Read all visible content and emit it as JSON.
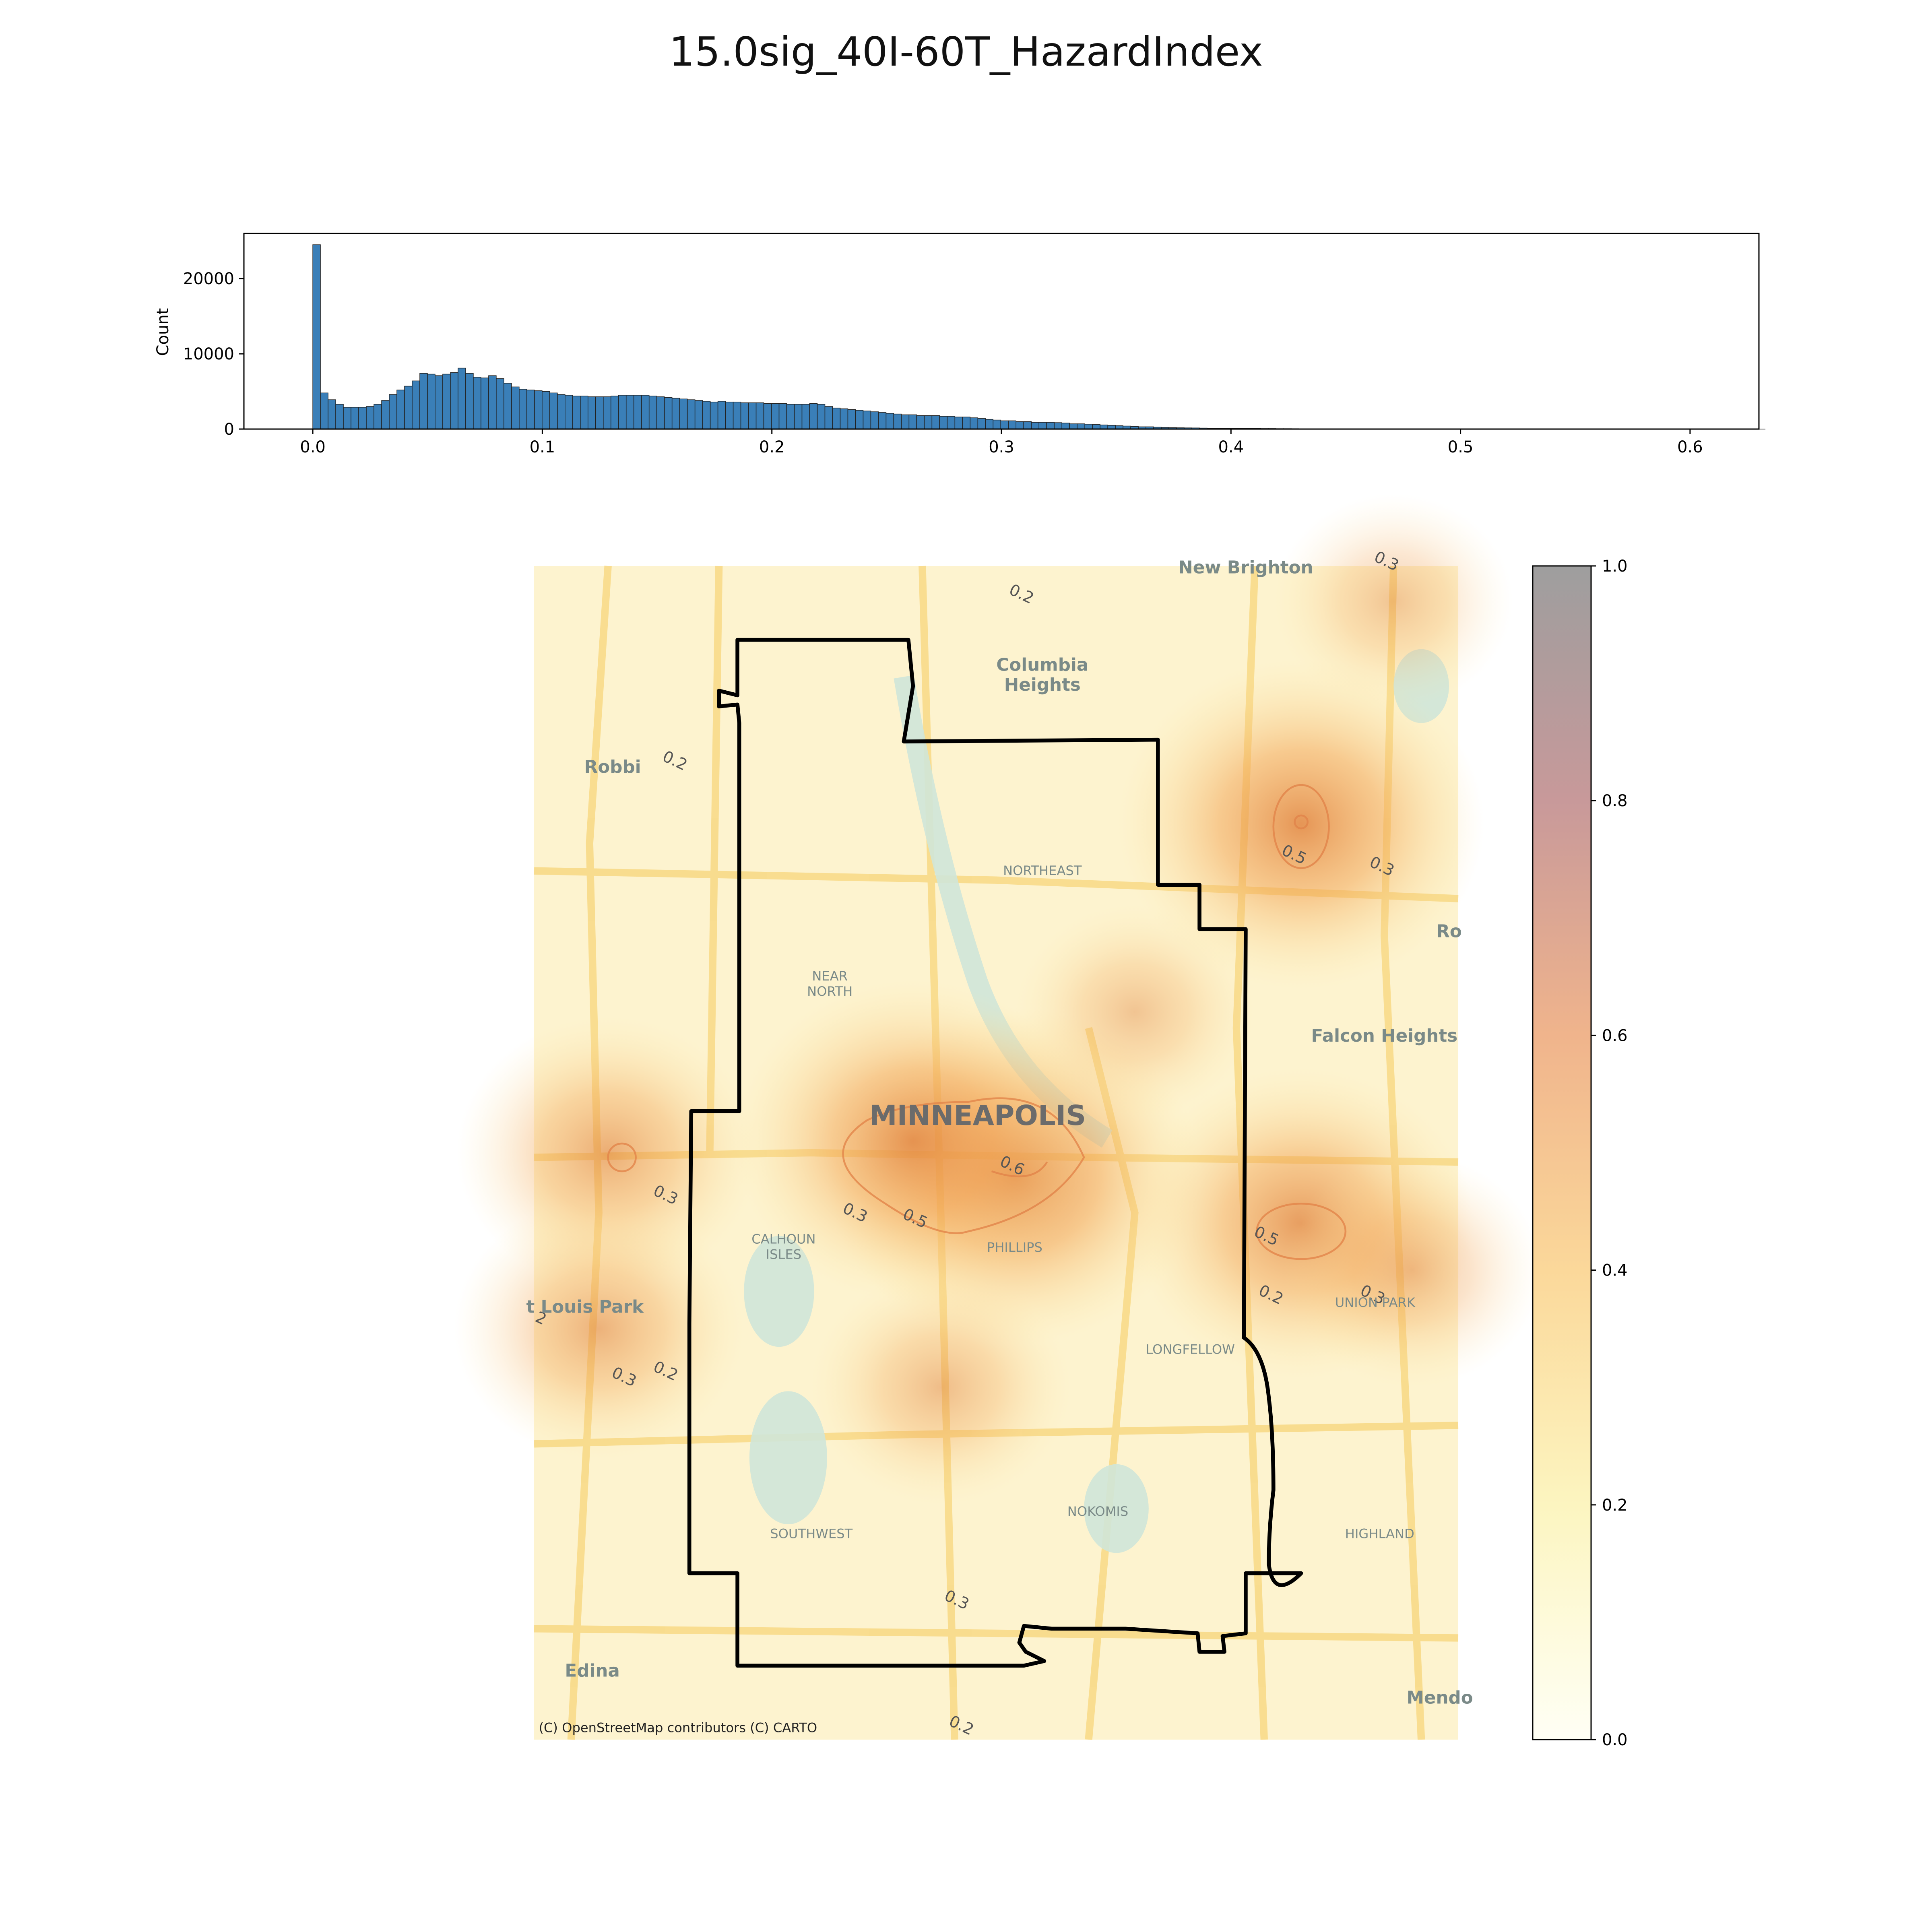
{
  "page": {
    "title": "15.0sig_40I-60T_HazardIndex"
  },
  "chart_data": [
    {
      "type": "bar",
      "kind": "histogram",
      "ylabel": "Count",
      "xlim": [
        -0.03,
        0.63
      ],
      "ylim": [
        0,
        26000
      ],
      "xticks": [
        "0.0",
        "0.1",
        "0.2",
        "0.3",
        "0.4",
        "0.5",
        "0.6"
      ],
      "yticks": [
        "0",
        "10000",
        "20000"
      ],
      "color": "#3a7fb8",
      "bin_width": 0.00333,
      "bin_start": 0.0,
      "values": [
        24500,
        4800,
        3900,
        3300,
        2900,
        2900,
        2900,
        3000,
        3300,
        3800,
        4600,
        5200,
        5700,
        6400,
        7400,
        7300,
        7100,
        7300,
        7500,
        8100,
        7400,
        6900,
        6800,
        7100,
        6700,
        6100,
        5600,
        5300,
        5200,
        5100,
        5000,
        4800,
        4600,
        4500,
        4400,
        4400,
        4300,
        4300,
        4300,
        4400,
        4500,
        4500,
        4500,
        4500,
        4400,
        4300,
        4200,
        4100,
        4000,
        3900,
        3800,
        3700,
        3600,
        3700,
        3600,
        3600,
        3500,
        3500,
        3500,
        3400,
        3400,
        3400,
        3300,
        3300,
        3300,
        3400,
        3300,
        3000,
        2800,
        2700,
        2600,
        2500,
        2400,
        2300,
        2200,
        2100,
        2000,
        1900,
        1900,
        1800,
        1800,
        1800,
        1700,
        1700,
        1600,
        1600,
        1500,
        1400,
        1300,
        1200,
        1100,
        1100,
        1000,
        1000,
        900,
        900,
        900,
        850,
        800,
        700,
        700,
        650,
        600,
        550,
        500,
        450,
        400,
        350,
        300,
        300,
        250,
        220,
        200,
        180,
        160,
        150,
        130,
        120,
        110,
        100,
        90,
        80,
        80,
        70,
        60,
        60,
        50,
        50,
        45,
        40,
        40,
        35,
        30,
        30,
        25,
        25,
        20,
        20,
        20,
        15,
        15,
        12,
        10,
        10,
        8,
        8,
        6,
        5,
        5,
        4,
        3,
        3,
        2,
        2,
        2,
        1,
        1,
        1,
        1,
        1,
        1,
        1,
        1,
        1,
        1,
        1,
        1,
        1,
        1,
        1,
        1,
        1,
        1,
        1,
        1,
        1,
        1,
        1,
        1,
        1,
        1,
        1,
        1,
        1,
        1,
        1,
        1,
        1,
        1,
        1
      ]
    },
    {
      "type": "heatmap",
      "kind": "map",
      "colorbar": {
        "min": 0.0,
        "max": 1.0,
        "ticks": [
          "0.0",
          "0.2",
          "0.4",
          "0.6",
          "0.8",
          "1.0"
        ]
      },
      "hotspots": [
        {
          "cx": 0.52,
          "cy": 0.52,
          "value": 0.62
        },
        {
          "cx": 0.41,
          "cy": 0.49,
          "value": 0.58
        },
        {
          "cx": 0.83,
          "cy": 0.22,
          "value": 0.6
        },
        {
          "cx": 0.83,
          "cy": 0.56,
          "value": 0.55
        },
        {
          "cx": 0.08,
          "cy": 0.5,
          "value": 0.45
        },
        {
          "cx": 0.07,
          "cy": 0.65,
          "value": 0.42
        },
        {
          "cx": 0.44,
          "cy": 0.7,
          "value": 0.35
        },
        {
          "cx": 0.65,
          "cy": 0.38,
          "value": 0.3
        },
        {
          "cx": 0.95,
          "cy": 0.6,
          "value": 0.35
        },
        {
          "cx": 0.93,
          "cy": 0.03,
          "value": 0.3
        }
      ],
      "contour_labels": [
        {
          "text": "0.2",
          "x": 0.525,
          "y": 0.028
        },
        {
          "text": "0.2",
          "x": 0.15,
          "y": 0.17
        },
        {
          "text": "0.5",
          "x": 0.82,
          "y": 0.25
        },
        {
          "text": "0.3",
          "x": 0.915,
          "y": 0.26
        },
        {
          "text": "0.6",
          "x": 0.515,
          "y": 0.515
        },
        {
          "text": "0.3",
          "x": 0.14,
          "y": 0.54
        },
        {
          "text": "0.3",
          "x": 0.345,
          "y": 0.555
        },
        {
          "text": "0.5",
          "x": 0.41,
          "y": 0.56
        },
        {
          "text": "0.5",
          "x": 0.79,
          "y": 0.575
        },
        {
          "text": "0.2",
          "x": 0.795,
          "y": 0.625
        },
        {
          "text": "0.3",
          "x": 0.905,
          "y": 0.625
        },
        {
          "text": "0.3",
          "x": 0.095,
          "y": 0.695
        },
        {
          "text": "0.2",
          "x": 0.14,
          "y": 0.69
        },
        {
          "text": "0.3",
          "x": 0.455,
          "y": 0.885
        },
        {
          "text": "0.2",
          "x": 0.46,
          "y": 0.992
        },
        {
          "text": "2",
          "x": 0.005,
          "y": 0.645
        },
        {
          "text": "0.3",
          "x": 0.92,
          "y": 0.0
        }
      ],
      "place_labels": [
        {
          "text": "New Brighton",
          "x": 0.77,
          "y": 0.0,
          "size": "md"
        },
        {
          "text": "Columbia",
          "x": 0.55,
          "y": 0.083,
          "size": "md"
        },
        {
          "text": "Heights",
          "x": 0.55,
          "y": 0.1,
          "size": "md"
        },
        {
          "text": "Robbi",
          "x": 0.085,
          "y": 0.17,
          "size": "md"
        },
        {
          "text": "NORTHEAST",
          "x": 0.55,
          "y": 0.257,
          "size": "sm"
        },
        {
          "text": "Ro",
          "x": 0.99,
          "y": 0.31,
          "size": "md"
        },
        {
          "text": "NEAR",
          "x": 0.32,
          "y": 0.347,
          "size": "sm"
        },
        {
          "text": "NORTH",
          "x": 0.32,
          "y": 0.36,
          "size": "sm"
        },
        {
          "text": "Falcon Heights",
          "x": 0.92,
          "y": 0.399,
          "size": "md"
        },
        {
          "text": "MINNEAPOLIS",
          "x": 0.48,
          "y": 0.47,
          "size": "lg"
        },
        {
          "text": "CALHOUN",
          "x": 0.27,
          "y": 0.571,
          "size": "sm"
        },
        {
          "text": "ISLES",
          "x": 0.27,
          "y": 0.584,
          "size": "sm"
        },
        {
          "text": "PHILLIPS",
          "x": 0.52,
          "y": 0.578,
          "size": "sm"
        },
        {
          "text": "t Louis Park",
          "x": 0.055,
          "y": 0.63,
          "size": "md"
        },
        {
          "text": "UNION PARK",
          "x": 0.91,
          "y": 0.625,
          "size": "sm"
        },
        {
          "text": "LONGFELLOW",
          "x": 0.71,
          "y": 0.665,
          "size": "sm"
        },
        {
          "text": "NOKOMIS",
          "x": 0.61,
          "y": 0.803,
          "size": "sm"
        },
        {
          "text": "SOUTHWEST",
          "x": 0.3,
          "y": 0.822,
          "size": "sm"
        },
        {
          "text": "HIGHLAND",
          "x": 0.915,
          "y": 0.822,
          "size": "sm"
        },
        {
          "text": "Edina",
          "x": 0.063,
          "y": 0.94,
          "size": "md"
        },
        {
          "text": "Mendo",
          "x": 0.98,
          "y": 0.963,
          "size": "md"
        }
      ],
      "attribution": "(C) OpenStreetMap contributors (C) CARTO"
    }
  ]
}
